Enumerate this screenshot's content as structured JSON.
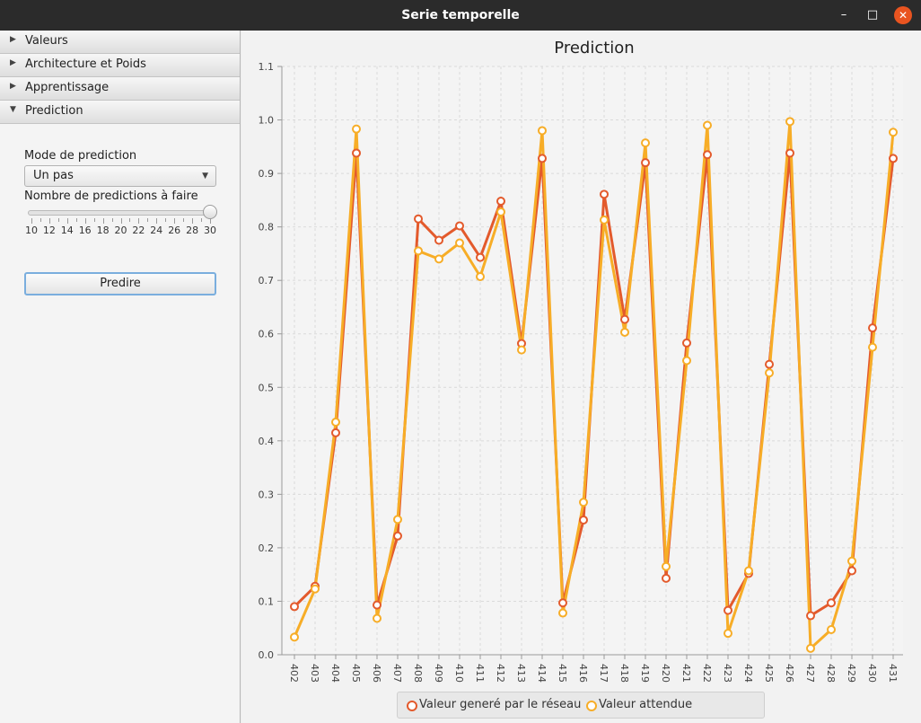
{
  "window": {
    "title": "Serie temporelle",
    "minimize_icon": "–",
    "maximize_icon": "□",
    "close_icon": "✕"
  },
  "sidebar": {
    "sections": [
      {
        "label": "Valeurs",
        "expanded": false
      },
      {
        "label": "Architecture et Poids",
        "expanded": false
      },
      {
        "label": "Apprentissage",
        "expanded": false
      },
      {
        "label": "Prediction",
        "expanded": true
      }
    ],
    "prediction_panel": {
      "mode_label": "Mode de prediction",
      "mode_value": "Un pas",
      "count_label": "Nombre de predictions à faire",
      "slider": {
        "min": 10,
        "max": 30,
        "value": 30,
        "tick_labels": [
          "10",
          "12",
          "14",
          "16",
          "18",
          "20",
          "22",
          "24",
          "26",
          "28",
          "30"
        ]
      },
      "predict_button": "Predire"
    }
  },
  "chart_data": {
    "type": "line",
    "title": "Prediction",
    "xlabel": "",
    "ylabel": "",
    "ylim": [
      0.0,
      1.1
    ],
    "y_ticks": [
      "0.0",
      "0.1",
      "0.2",
      "0.3",
      "0.4",
      "0.5",
      "0.6",
      "0.7",
      "0.8",
      "0.9",
      "1.0",
      "1.1"
    ],
    "grid": true,
    "legend_position": "bottom",
    "categories": [
      "402",
      "403",
      "404",
      "405",
      "406",
      "407",
      "408",
      "409",
      "410",
      "411",
      "412",
      "413",
      "414",
      "415",
      "416",
      "417",
      "418",
      "419",
      "420",
      "421",
      "422",
      "423",
      "424",
      "425",
      "426",
      "427",
      "428",
      "429",
      "430",
      "431"
    ],
    "series": [
      {
        "name": "Valeur generé par le réseau",
        "color": "#e35a2c",
        "values": [
          0.09,
          0.128,
          0.415,
          0.938,
          0.093,
          0.222,
          0.815,
          0.775,
          0.802,
          0.743,
          0.848,
          0.582,
          0.928,
          0.097,
          0.252,
          0.861,
          0.627,
          0.92,
          0.143,
          0.583,
          0.935,
          0.083,
          0.152,
          0.543,
          0.938,
          0.073,
          0.097,
          0.157,
          0.611,
          0.928
        ]
      },
      {
        "name": "Valeur attendue",
        "color": "#f7ad27",
        "values": [
          0.033,
          0.123,
          0.435,
          0.983,
          0.068,
          0.253,
          0.755,
          0.74,
          0.77,
          0.707,
          0.828,
          0.57,
          0.98,
          0.078,
          0.285,
          0.813,
          0.603,
          0.957,
          0.165,
          0.55,
          0.99,
          0.04,
          0.157,
          0.527,
          0.997,
          0.012,
          0.047,
          0.175,
          0.575,
          0.977
        ]
      }
    ]
  }
}
